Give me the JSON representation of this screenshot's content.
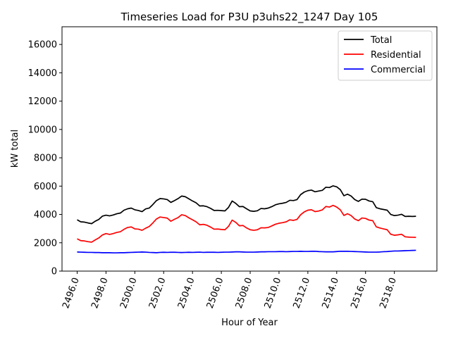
{
  "chart_data": {
    "type": "line",
    "title": "Timeseries Load for P3U p3uhs22_1247  Day 105",
    "xlabel": "Hour of Year",
    "ylabel": "kW total",
    "xlim": [
      2494.95,
      2520.95
    ],
    "ylim": [
      0,
      17250
    ],
    "xticks": [
      2496,
      2498,
      2500,
      2502,
      2504,
      2506,
      2508,
      2510,
      2512,
      2514,
      2516,
      2518
    ],
    "xtick_labels": [
      "2496.0",
      "2498.0",
      "2500.0",
      "2502.0",
      "2504.0",
      "2506.0",
      "2508.0",
      "2510.0",
      "2512.0",
      "2514.0",
      "2516.0",
      "2518.0"
    ],
    "yticks": [
      0,
      2000,
      4000,
      6000,
      8000,
      10000,
      12000,
      14000,
      16000
    ],
    "ytick_labels": [
      "0",
      "2000",
      "4000",
      "6000",
      "8000",
      "10000",
      "12000",
      "14000",
      "16000"
    ],
    "legend_position": "top-right",
    "x_start": 2496,
    "x_step": 0.25,
    "series": [
      {
        "name": "Total",
        "color": "#000000",
        "values": [
          3620,
          3480,
          3460,
          3400,
          3350,
          3520,
          3650,
          3880,
          3950,
          3900,
          3960,
          4050,
          4100,
          4300,
          4400,
          4450,
          4330,
          4280,
          4200,
          4390,
          4450,
          4700,
          4980,
          5120,
          5100,
          5050,
          4850,
          4980,
          5120,
          5300,
          5250,
          5100,
          4950,
          4820,
          4600,
          4610,
          4550,
          4430,
          4280,
          4290,
          4270,
          4250,
          4500,
          4950,
          4780,
          4550,
          4560,
          4400,
          4250,
          4220,
          4260,
          4420,
          4400,
          4450,
          4550,
          4680,
          4750,
          4790,
          4850,
          5000,
          4980,
          5050,
          5400,
          5580,
          5680,
          5720,
          5600,
          5650,
          5700,
          5920,
          5900,
          6020,
          5950,
          5750,
          5320,
          5430,
          5300,
          5050,
          4920,
          5080,
          5070,
          4950,
          4900,
          4480,
          4400,
          4350,
          4300,
          4000,
          3920,
          3950,
          4010,
          3860,
          3870,
          3860,
          3870
        ]
      },
      {
        "name": "Residential",
        "color": "#ff0000",
        "values": [
          2280,
          2150,
          2130,
          2080,
          2040,
          2200,
          2340,
          2550,
          2650,
          2590,
          2650,
          2730,
          2780,
          2950,
          3080,
          3120,
          2980,
          2960,
          2880,
          3030,
          3150,
          3400,
          3680,
          3820,
          3780,
          3740,
          3520,
          3660,
          3780,
          3980,
          3920,
          3760,
          3620,
          3480,
          3270,
          3300,
          3240,
          3110,
          2960,
          2970,
          2940,
          2920,
          3160,
          3600,
          3440,
          3200,
          3220,
          3050,
          2920,
          2880,
          2920,
          3060,
          3050,
          3080,
          3190,
          3310,
          3380,
          3420,
          3480,
          3620,
          3580,
          3650,
          3980,
          4180,
          4300,
          4330,
          4200,
          4240,
          4320,
          4560,
          4520,
          4640,
          4520,
          4330,
          3930,
          4050,
          3920,
          3680,
          3560,
          3750,
          3720,
          3600,
          3560,
          3120,
          3040,
          2980,
          2920,
          2600,
          2530,
          2560,
          2600,
          2420,
          2400,
          2390,
          2380
        ]
      },
      {
        "name": "Commercial",
        "color": "#0000ff",
        "values": [
          1350,
          1340,
          1330,
          1320,
          1320,
          1310,
          1310,
          1300,
          1300,
          1300,
          1290,
          1290,
          1300,
          1300,
          1310,
          1320,
          1330,
          1340,
          1350,
          1340,
          1320,
          1310,
          1300,
          1320,
          1330,
          1320,
          1330,
          1330,
          1320,
          1310,
          1320,
          1330,
          1320,
          1330,
          1340,
          1320,
          1330,
          1330,
          1330,
          1320,
          1330,
          1340,
          1340,
          1350,
          1360,
          1360,
          1350,
          1340,
          1340,
          1340,
          1350,
          1360,
          1360,
          1370,
          1370,
          1370,
          1380,
          1380,
          1370,
          1380,
          1390,
          1390,
          1400,
          1390,
          1390,
          1400,
          1400,
          1380,
          1370,
          1360,
          1360,
          1360,
          1380,
          1400,
          1400,
          1400,
          1390,
          1380,
          1370,
          1360,
          1350,
          1340,
          1340,
          1340,
          1350,
          1370,
          1380,
          1400,
          1420,
          1420,
          1430,
          1440,
          1450,
          1460,
          1470
        ]
      }
    ]
  }
}
